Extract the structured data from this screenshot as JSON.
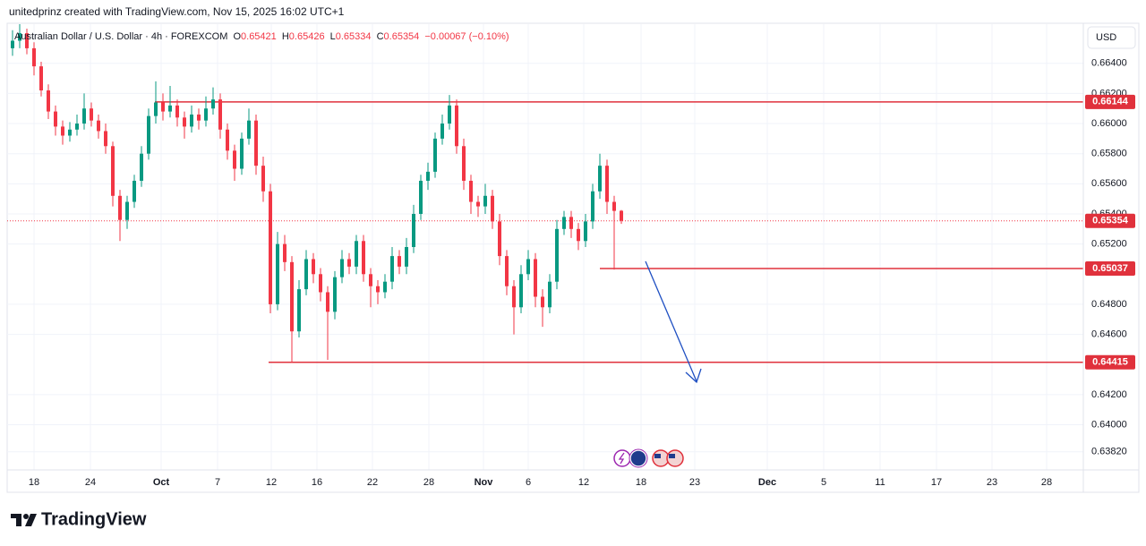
{
  "chart_data": {
    "type": "candlestick",
    "header": "unitedprinz created with TradingView.com, Nov 15, 2025 16:02 UTC+1",
    "symbol": "Australian Dollar / U.S. Dollar · 4h · FOREXCOM",
    "ohlc_letters": [
      "O",
      "H",
      "L",
      "C"
    ],
    "change": "−0.00067 (−0.10%)",
    "currency": "USD",
    "brand": "TradingView",
    "up_color": "#089981",
    "down_color": "#f23645",
    "level_color": "#e0313c",
    "ylim": [
      0.637,
      0.6666
    ],
    "yticks": [
      {
        "value": 0.664,
        "label": "0.66400"
      },
      {
        "value": 0.662,
        "label": "0.66200"
      },
      {
        "value": 0.66,
        "label": "0.66000"
      },
      {
        "value": 0.658,
        "label": "0.65800"
      },
      {
        "value": 0.656,
        "label": "0.65600"
      },
      {
        "value": 0.654,
        "label": "0.65400"
      },
      {
        "value": 0.652,
        "label": "0.65200"
      },
      {
        "value": 0.648,
        "label": "0.64800"
      },
      {
        "value": 0.646,
        "label": "0.64600"
      },
      {
        "value": 0.642,
        "label": "0.64200"
      },
      {
        "value": 0.64,
        "label": "0.64000"
      },
      {
        "value": 0.6382,
        "label": "0.63820"
      }
    ],
    "xtick_labels": [
      "18",
      "24",
      "Oct",
      "7",
      "12",
      "16",
      "22",
      "28",
      "Nov",
      "6",
      "12",
      "18",
      "23",
      "Dec",
      "5",
      "11",
      "17",
      "23",
      "28"
    ],
    "levels": [
      0.66144,
      0.65037,
      0.64415
    ],
    "grid": true,
    "ohlc": [
      [
        0.665,
        0.6662,
        0.6645,
        0.6655
      ],
      [
        0.6655,
        0.6666,
        0.665,
        0.666
      ],
      [
        0.666,
        0.6663,
        0.6646,
        0.665
      ],
      [
        0.665,
        0.6654,
        0.6632,
        0.6638
      ],
      [
        0.6638,
        0.6641,
        0.6618,
        0.6622
      ],
      [
        0.6622,
        0.6626,
        0.6603,
        0.6608
      ],
      [
        0.6608,
        0.6612,
        0.6592,
        0.6598
      ],
      [
        0.6598,
        0.6602,
        0.6586,
        0.6592
      ],
      [
        0.6592,
        0.6601,
        0.6588,
        0.6596
      ],
      [
        0.6596,
        0.6606,
        0.6592,
        0.66
      ],
      [
        0.66,
        0.662,
        0.6596,
        0.661
      ],
      [
        0.661,
        0.6614,
        0.6598,
        0.6602
      ],
      [
        0.6602,
        0.6606,
        0.659,
        0.6595
      ],
      [
        0.6595,
        0.66,
        0.658,
        0.6585
      ],
      [
        0.6585,
        0.6588,
        0.6545,
        0.6552
      ],
      [
        0.6552,
        0.6556,
        0.6522,
        0.6536
      ],
      [
        0.6536,
        0.6552,
        0.653,
        0.6548
      ],
      [
        0.6548,
        0.6566,
        0.6544,
        0.6562
      ],
      [
        0.6562,
        0.6585,
        0.6558,
        0.658
      ],
      [
        0.658,
        0.661,
        0.6576,
        0.6605
      ],
      [
        0.6605,
        0.6628,
        0.66,
        0.6614
      ],
      [
        0.6614,
        0.662,
        0.6602,
        0.6608
      ],
      [
        0.6608,
        0.6625,
        0.6604,
        0.6612
      ],
      [
        0.6612,
        0.6616,
        0.6598,
        0.6604
      ],
      [
        0.6604,
        0.6608,
        0.659,
        0.6598
      ],
      [
        0.6598,
        0.6612,
        0.6594,
        0.6606
      ],
      [
        0.6606,
        0.661,
        0.6596,
        0.6602
      ],
      [
        0.6602,
        0.6618,
        0.6598,
        0.661
      ],
      [
        0.661,
        0.6624,
        0.6606,
        0.6616
      ],
      [
        0.6616,
        0.662,
        0.659,
        0.6596
      ],
      [
        0.6596,
        0.66,
        0.6576,
        0.6582
      ],
      [
        0.6582,
        0.6586,
        0.6562,
        0.657
      ],
      [
        0.657,
        0.6594,
        0.6566,
        0.659
      ],
      [
        0.659,
        0.661,
        0.6586,
        0.6602
      ],
      [
        0.6602,
        0.6606,
        0.6566,
        0.6572
      ],
      [
        0.6572,
        0.6578,
        0.6548,
        0.6555
      ],
      [
        0.6555,
        0.656,
        0.6474,
        0.648
      ],
      [
        0.648,
        0.6528,
        0.6476,
        0.652
      ],
      [
        0.652,
        0.6526,
        0.6502,
        0.6508
      ],
      [
        0.6508,
        0.6512,
        0.6441,
        0.6462
      ],
      [
        0.6462,
        0.6496,
        0.6458,
        0.649
      ],
      [
        0.649,
        0.6516,
        0.6486,
        0.651
      ],
      [
        0.651,
        0.6514,
        0.6494,
        0.65
      ],
      [
        0.65,
        0.6504,
        0.6482,
        0.6488
      ],
      [
        0.6488,
        0.6492,
        0.6443,
        0.6475
      ],
      [
        0.6475,
        0.6502,
        0.647,
        0.6498
      ],
      [
        0.6498,
        0.6516,
        0.6494,
        0.651
      ],
      [
        0.651,
        0.6514,
        0.65,
        0.6505
      ],
      [
        0.6505,
        0.6526,
        0.65,
        0.6522
      ],
      [
        0.6522,
        0.6526,
        0.6495,
        0.65
      ],
      [
        0.65,
        0.6504,
        0.6478,
        0.6492
      ],
      [
        0.6492,
        0.6496,
        0.648,
        0.6488
      ],
      [
        0.6488,
        0.65,
        0.6484,
        0.6495
      ],
      [
        0.6495,
        0.6518,
        0.649,
        0.6512
      ],
      [
        0.6512,
        0.6516,
        0.65,
        0.6505
      ],
      [
        0.6505,
        0.6524,
        0.65,
        0.6518
      ],
      [
        0.6518,
        0.6546,
        0.6514,
        0.654
      ],
      [
        0.654,
        0.6566,
        0.6536,
        0.6562
      ],
      [
        0.6562,
        0.6574,
        0.6556,
        0.6568
      ],
      [
        0.6568,
        0.6594,
        0.6564,
        0.659
      ],
      [
        0.659,
        0.6606,
        0.6586,
        0.66
      ],
      [
        0.66,
        0.6619,
        0.6596,
        0.6612
      ],
      [
        0.6612,
        0.6616,
        0.658,
        0.6585
      ],
      [
        0.6585,
        0.659,
        0.6556,
        0.6562
      ],
      [
        0.6562,
        0.6566,
        0.654,
        0.6548
      ],
      [
        0.6548,
        0.6552,
        0.6538,
        0.6545
      ],
      [
        0.6545,
        0.656,
        0.654,
        0.6552
      ],
      [
        0.6552,
        0.6556,
        0.653,
        0.6535
      ],
      [
        0.6535,
        0.654,
        0.6506,
        0.6512
      ],
      [
        0.6512,
        0.6516,
        0.6486,
        0.6492
      ],
      [
        0.6492,
        0.6496,
        0.646,
        0.6478
      ],
      [
        0.6478,
        0.6506,
        0.6474,
        0.65
      ],
      [
        0.65,
        0.6516,
        0.6496,
        0.651
      ],
      [
        0.651,
        0.6514,
        0.6478,
        0.6485
      ],
      [
        0.6485,
        0.649,
        0.6465,
        0.6478
      ],
      [
        0.6478,
        0.65,
        0.6474,
        0.6495
      ],
      [
        0.6495,
        0.6536,
        0.649,
        0.653
      ],
      [
        0.653,
        0.6542,
        0.6526,
        0.6538
      ],
      [
        0.6538,
        0.6542,
        0.6524,
        0.653
      ],
      [
        0.653,
        0.6534,
        0.6516,
        0.6522
      ],
      [
        0.6522,
        0.654,
        0.6518,
        0.6535
      ],
      [
        0.6535,
        0.656,
        0.653,
        0.6555
      ],
      [
        0.6555,
        0.658,
        0.655,
        0.6572
      ],
      [
        0.6572,
        0.6576,
        0.654,
        0.6548
      ],
      [
        0.6548,
        0.6552,
        0.6503,
        0.6542
      ],
      [
        0.65421,
        0.65426,
        0.65334,
        0.65354
      ]
    ]
  }
}
